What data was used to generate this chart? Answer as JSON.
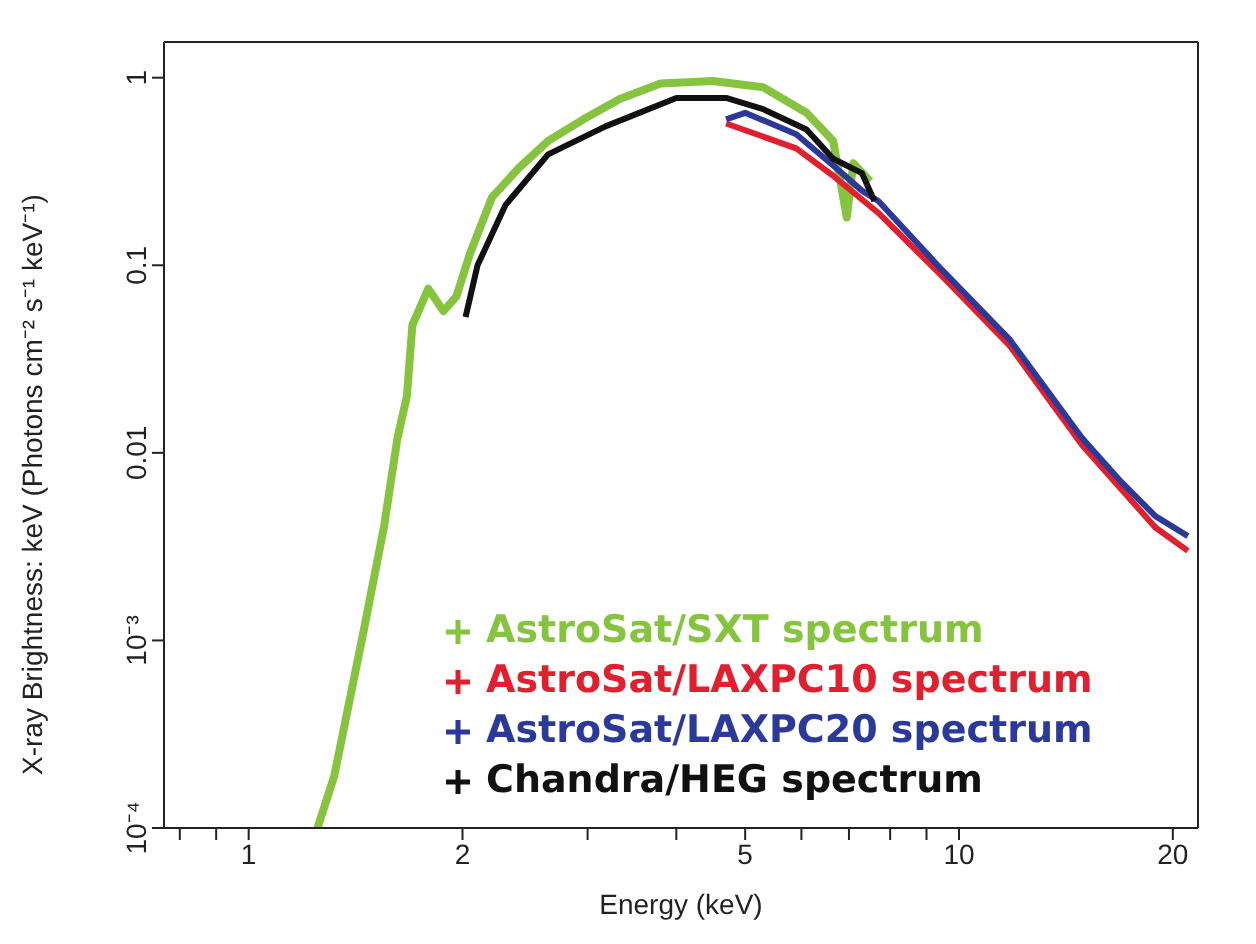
{
  "chart_data": {
    "type": "line",
    "xlabel": "Energy (keV)",
    "ylabel": "X-ray Brightness: keV (Photons cm⁻² s⁻¹ keV⁻¹)",
    "log": "xy",
    "marker": "none",
    "line_style": "solid",
    "legend": "bottom",
    "xlim": [
      0.76,
      21.7
    ],
    "xticks": [
      {
        "value": 0.8,
        "label": null
      },
      {
        "value": 0.9,
        "label": null
      },
      1,
      2,
      {
        "value": 3,
        "label": null
      },
      {
        "value": 4,
        "label": null
      },
      5,
      {
        "value": 6,
        "label": null
      },
      {
        "value": 7,
        "label": null
      },
      {
        "value": 8,
        "label": null
      },
      {
        "value": 9,
        "label": null
      },
      10,
      20
    ],
    "ylim": [
      0.0001,
      1.55
    ],
    "yticks": [
      {
        "value": 0.0001,
        "label": "10⁻⁴"
      },
      {
        "value": 0.001,
        "label": "10⁻³"
      },
      0.01,
      0.1,
      1
    ],
    "series": [
      {
        "name": "AstroSat/SXT spectrum",
        "color": "#86c440",
        "x": [
          1.25,
          1.32,
          1.45,
          1.55,
          1.62,
          1.67,
          1.7,
          1.79,
          1.88,
          1.96,
          2.05,
          2.2,
          2.4,
          2.64,
          2.96,
          3.33,
          3.8,
          4.5,
          5.3,
          6.1,
          6.65,
          6.95,
          7.1,
          7.5
        ],
        "values": [
          0.0001,
          0.00019,
          0.0011,
          0.004,
          0.012,
          0.02,
          0.048,
          0.075,
          0.057,
          0.068,
          0.116,
          0.23,
          0.33,
          0.46,
          0.6,
          0.77,
          0.93,
          0.96,
          0.89,
          0.65,
          0.46,
          0.18,
          0.35,
          0.28
        ]
      },
      {
        "name": "AstroSat/LAXPC10 spectrum",
        "color": "#e0202e",
        "x": [
          4.7,
          5.9,
          6.65,
          7.7,
          9.45,
          11.8,
          14.9,
          16.8,
          18.9,
          21
        ],
        "values": [
          0.57,
          0.42,
          0.3,
          0.19,
          0.088,
          0.037,
          0.011,
          0.0066,
          0.004,
          0.003
        ]
      },
      {
        "name": "AstroSat/LAXPC20 spectrum",
        "color": "#2b3a9a",
        "x": [
          4.7,
          5.0,
          5.9,
          6.65,
          7.3,
          7.7,
          9.45,
          11.8,
          14.9,
          16.8,
          18.9,
          21
        ],
        "values": [
          0.6,
          0.65,
          0.5,
          0.34,
          0.25,
          0.22,
          0.095,
          0.04,
          0.012,
          0.0072,
          0.0046,
          0.0036
        ]
      },
      {
        "name": "Chandra/HEG spectrum",
        "color": "#111111",
        "x": [
          2.02,
          2.1,
          2.3,
          2.64,
          3.18,
          4.0,
          4.7,
          5.3,
          6.1,
          6.65,
          7.3,
          7.6
        ],
        "values": [
          0.053,
          0.1,
          0.21,
          0.39,
          0.55,
          0.78,
          0.78,
          0.68,
          0.53,
          0.37,
          0.31,
          0.22
        ]
      }
    ]
  }
}
